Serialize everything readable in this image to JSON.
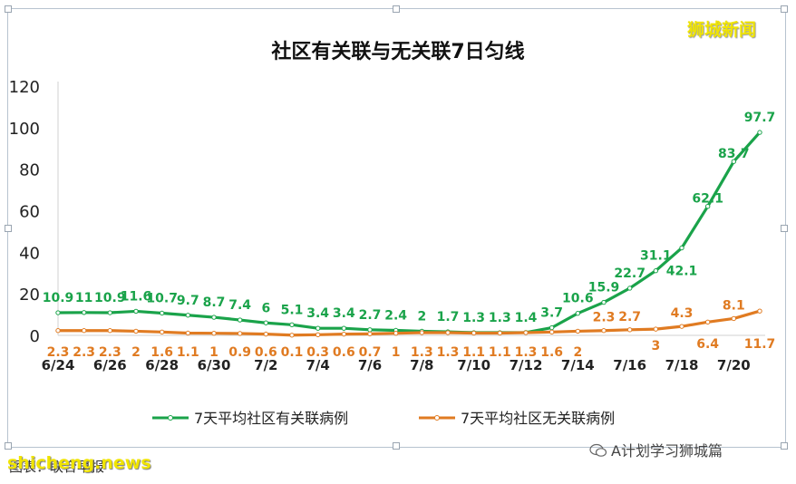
{
  "watermark": {
    "brand": "狮城新闻",
    "footer_left": "图表：联合早报",
    "footer_overlay": "shicheng.news",
    "wechat": "A计划学习狮城篇"
  },
  "chart_data": {
    "type": "line",
    "title": "社区有关联与无关联7日匀线",
    "xlabel": "",
    "ylabel": "",
    "ylim": [
      0,
      120
    ],
    "yticks": [
      0,
      20,
      40,
      60,
      80,
      100,
      120
    ],
    "x": [
      "6/24",
      "6/25",
      "6/26",
      "6/27",
      "6/28",
      "6/29",
      "6/30",
      "7/1",
      "7/2",
      "7/3",
      "7/4",
      "7/5",
      "7/6",
      "7/7",
      "7/8",
      "7/9",
      "7/10",
      "7/11",
      "7/12",
      "7/13",
      "7/14",
      "7/15",
      "7/16",
      "7/17",
      "7/18",
      "7/19",
      "7/20",
      "7/21"
    ],
    "x_tick_labels": [
      "6/24",
      "6/26",
      "6/28",
      "6/30",
      "7/2",
      "7/4",
      "7/6",
      "7/8",
      "7/10",
      "7/12",
      "7/14",
      "7/16",
      "7/18",
      "7/20"
    ],
    "series": [
      {
        "name": "7天平均社区有关联病例",
        "color": "#1aa34a",
        "values": [
          10.9,
          11,
          10.9,
          11.6,
          10.7,
          9.7,
          8.7,
          7.4,
          6,
          5.1,
          3.4,
          3.4,
          2.7,
          2.4,
          2,
          1.7,
          1.3,
          1.3,
          1.4,
          3.7,
          10.6,
          15.9,
          22.7,
          31.1,
          42.1,
          62.1,
          83.7,
          97.7
        ],
        "labels": [
          "10.9",
          "11",
          "10.9",
          "11.6",
          "10.7",
          "9.7",
          "8.7",
          "7.4",
          "6",
          "5.1",
          "3.4",
          "3.4",
          "2.7",
          "2.4",
          "2",
          "1.7",
          "1.3",
          "1.3",
          "1.4",
          "3.7",
          "10.6",
          "15.9",
          "22.7",
          "31.1",
          "42.1",
          "62.1",
          "83.7",
          "97.7"
        ]
      },
      {
        "name": "7天平均社区无关联病例",
        "color": "#e07b22",
        "values": [
          2.3,
          2.3,
          2.3,
          2,
          1.6,
          1.1,
          1,
          0.9,
          0.6,
          0.1,
          0.3,
          0.6,
          0.7,
          1,
          1.3,
          1.3,
          1.1,
          1.1,
          1.3,
          1.6,
          2,
          2.3,
          2.7,
          3,
          4.3,
          6.4,
          8.1,
          11.7
        ],
        "labels": [
          "2.3",
          "2.3",
          "2.3",
          "2",
          "1.6",
          "1.1",
          "1",
          "0.9",
          "0.6",
          "0.1",
          "0.3",
          "0.6",
          "0.7",
          "1",
          "1.3",
          "1.3",
          "1.1",
          "1.1",
          "1.3",
          "1.6",
          "2",
          "2.3",
          "2.7",
          "3",
          "4.3",
          "6.4",
          "8.1",
          "11.7"
        ]
      }
    ],
    "legend": "bottom",
    "grid": false
  }
}
